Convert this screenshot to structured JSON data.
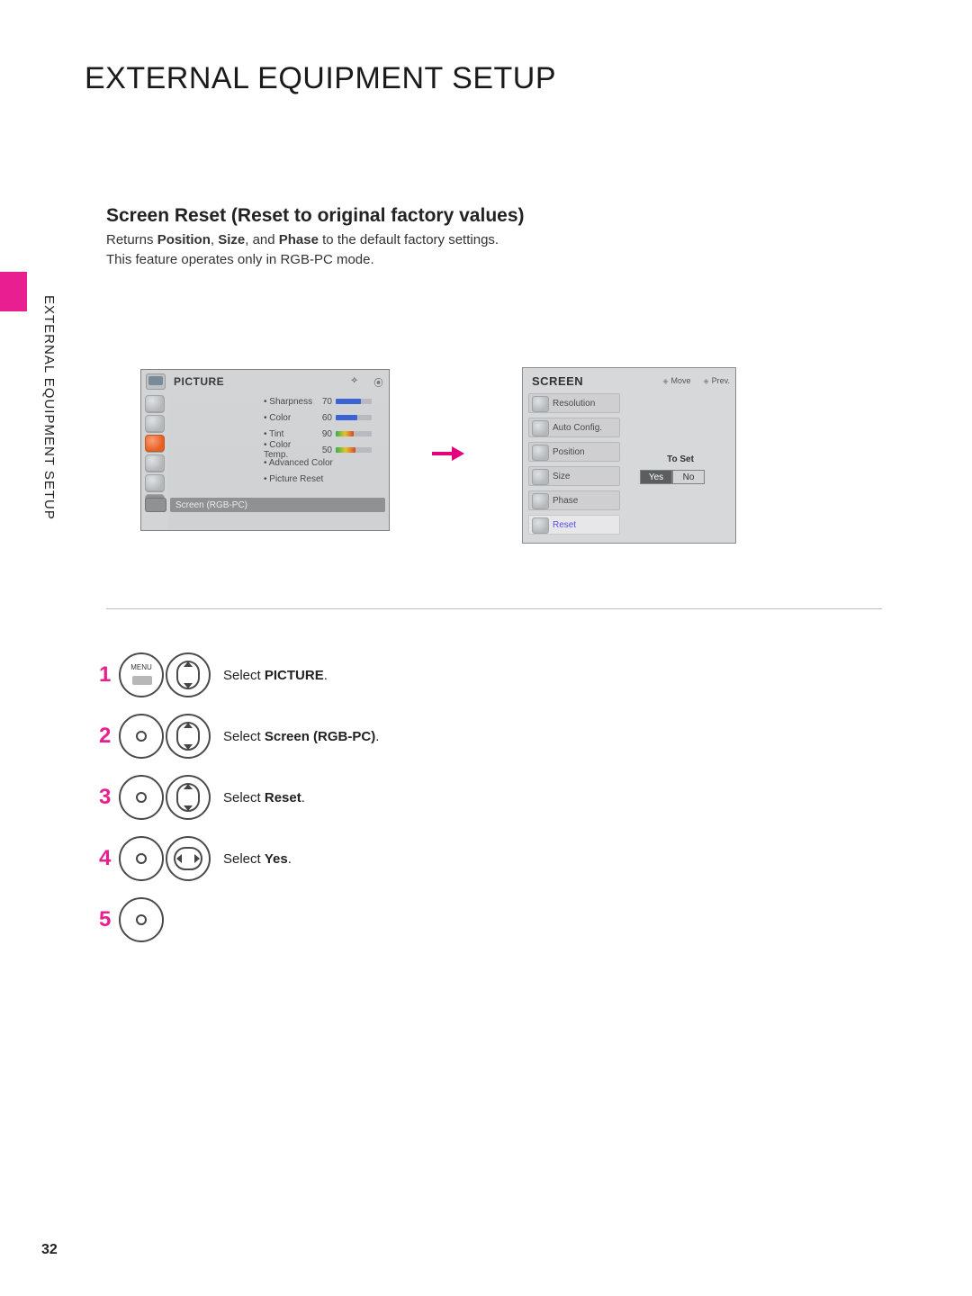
{
  "page": {
    "title": "EXTERNAL EQUIPMENT SETUP",
    "side_label": "EXTERNAL EQUIPMENT SETUP",
    "number": "32"
  },
  "section": {
    "heading": "Screen Reset (Reset to original factory values)",
    "line1_pre": "Returns ",
    "line1_b1": "Position",
    "line1_m1": ", ",
    "line1_b2": "Size",
    "line1_m2": ", and ",
    "line1_b3": "Phase",
    "line1_post": " to the default factory settings.",
    "line2": "This feature operates only in RGB-PC mode."
  },
  "picture_osd": {
    "title": "PICTURE",
    "rows": [
      {
        "label": "Sharpness",
        "value": 70,
        "fill_pct": 70,
        "color": "#3b63d6"
      },
      {
        "label": "Color",
        "value": 60,
        "fill_pct": 60,
        "color": "#3b63d6"
      },
      {
        "label": "Tint",
        "value": 90,
        "fill_pct": 50,
        "color": "#3b63d6",
        "grad": true
      },
      {
        "label": "Color Temp.",
        "value": 50,
        "fill_pct": 55,
        "color": "#d24a2b",
        "grad": true
      }
    ],
    "plain_rows": [
      "Advanced Color",
      "Picture Reset"
    ],
    "selected_row": "Screen (RGB-PC)",
    "hdr_colors": {
      "bg": "#d2d4d5"
    }
  },
  "arrow_color": "#e6007e",
  "screen_osd": {
    "title": "SCREEN",
    "hints": {
      "move": "Move",
      "prev": "Prev."
    },
    "items": [
      {
        "label": "Resolution",
        "hl": false
      },
      {
        "label": "Auto Config.",
        "hl": false
      },
      {
        "label": "Position",
        "hl": false
      },
      {
        "label": "Size",
        "hl": false
      },
      {
        "label": "Phase",
        "hl": false
      },
      {
        "label": "Reset",
        "hl": true
      }
    ],
    "detail": {
      "to_set": "To Set",
      "yes": "Yes",
      "no": "No"
    }
  },
  "steps": [
    {
      "num": "1",
      "btn_a": "menu",
      "btn_b": "updown",
      "pre": "Select ",
      "bold": "PICTURE",
      "post": "."
    },
    {
      "num": "2",
      "btn_a": "dot",
      "btn_b": "updown",
      "pre": "Select ",
      "bold": "Screen (RGB-PC)",
      "post": "."
    },
    {
      "num": "3",
      "btn_a": "dot",
      "btn_b": "updown",
      "pre": "Select ",
      "bold": "Reset",
      "post": "."
    },
    {
      "num": "4",
      "btn_a": "dot",
      "btn_b": "lr",
      "pre": "Select ",
      "bold": "Yes",
      "post": "."
    },
    {
      "num": "5",
      "btn_a": "dot",
      "btn_b": "",
      "pre": "",
      "bold": "",
      "post": ""
    }
  ],
  "colors": {
    "accent": "#e91e90",
    "panel_bg": "#d2d4d5",
    "panel_border": "#808285",
    "selected_bar": "#8f9193"
  }
}
